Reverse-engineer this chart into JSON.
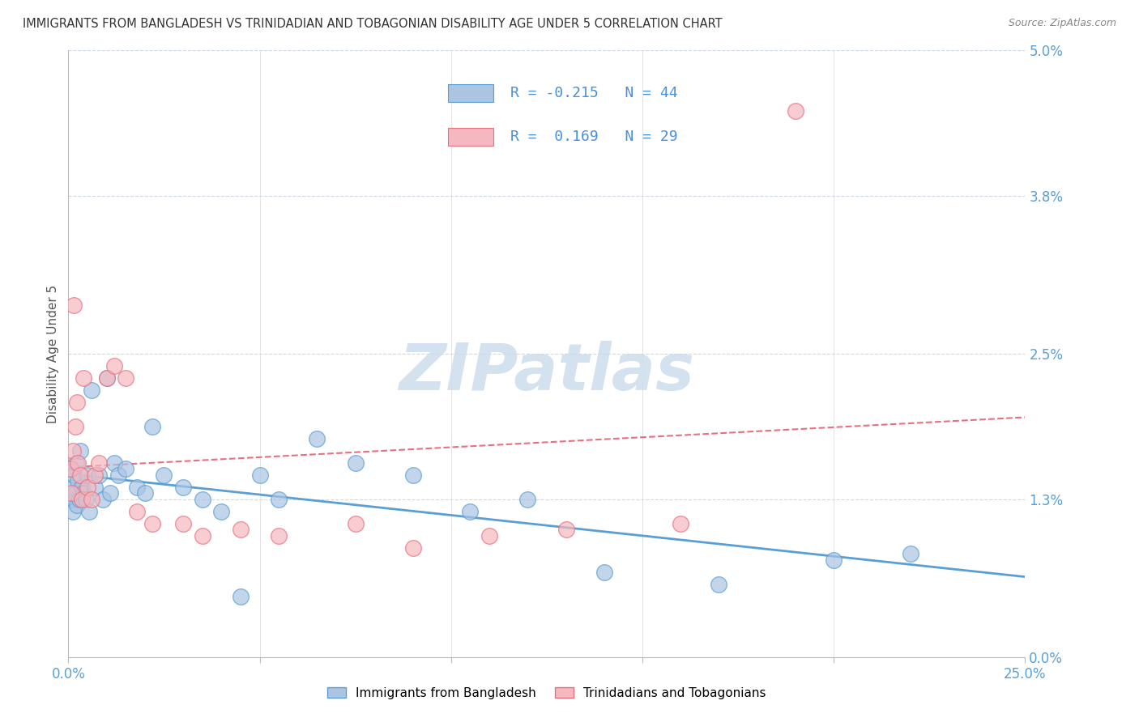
{
  "title": "IMMIGRANTS FROM BANGLADESH VS TRINIDADIAN AND TOBAGONIAN DISABILITY AGE UNDER 5 CORRELATION CHART",
  "source": "Source: ZipAtlas.com",
  "ylabel": "Disability Age Under 5",
  "ytick_values": [
    0.0,
    1.3,
    2.5,
    3.8,
    5.0
  ],
  "xlim": [
    0.0,
    25.0
  ],
  "ylim": [
    0.0,
    5.0
  ],
  "legend_label1": "Immigrants from Bangladesh",
  "legend_label2": "Trinidadians and Tobagonians",
  "R1": "-0.215",
  "N1": "44",
  "R2": "0.169",
  "N2": "29",
  "color_blue": "#aac4e2",
  "color_pink": "#f5b8c0",
  "trendline_blue": "#5a9fd4",
  "trendline_pink": "#e8707e",
  "watermark_color": "#cddcec",
  "bg_color": "#ffffff",
  "grid_color": "#d0d8e4",
  "bangladesh_x": [
    0.05,
    0.08,
    0.1,
    0.12,
    0.15,
    0.18,
    0.2,
    0.22,
    0.25,
    0.28,
    0.3,
    0.35,
    0.4,
    0.45,
    0.5,
    0.55,
    0.6,
    0.7,
    0.8,
    0.9,
    1.0,
    1.1,
    1.2,
    1.3,
    1.5,
    1.8,
    2.0,
    2.2,
    2.5,
    3.0,
    3.5,
    4.0,
    4.5,
    5.0,
    5.5,
    6.5,
    7.5,
    9.0,
    10.5,
    12.0,
    14.0,
    17.0,
    20.0,
    22.0
  ],
  "bangladesh_y": [
    1.55,
    1.3,
    1.4,
    1.2,
    1.5,
    1.35,
    1.6,
    1.25,
    1.45,
    1.3,
    1.7,
    1.4,
    1.35,
    1.3,
    1.5,
    1.2,
    2.2,
    1.4,
    1.5,
    1.3,
    2.3,
    1.35,
    1.6,
    1.5,
    1.55,
    1.4,
    1.35,
    1.9,
    1.5,
    1.4,
    1.3,
    1.2,
    0.5,
    1.5,
    1.3,
    1.8,
    1.6,
    1.5,
    1.2,
    1.3,
    0.7,
    0.6,
    0.8,
    0.85
  ],
  "trinidad_x": [
    0.05,
    0.08,
    0.12,
    0.15,
    0.18,
    0.22,
    0.25,
    0.3,
    0.35,
    0.4,
    0.5,
    0.6,
    0.7,
    0.8,
    1.0,
    1.2,
    1.5,
    1.8,
    2.2,
    3.0,
    3.5,
    4.5,
    5.5,
    7.5,
    9.0,
    11.0,
    13.0,
    16.0,
    19.0
  ],
  "trinidad_y": [
    1.55,
    1.35,
    1.7,
    2.9,
    1.9,
    2.1,
    1.6,
    1.5,
    1.3,
    2.3,
    1.4,
    1.3,
    1.5,
    1.6,
    2.3,
    2.4,
    2.3,
    1.2,
    1.1,
    1.1,
    1.0,
    1.05,
    1.0,
    1.1,
    0.9,
    1.0,
    1.05,
    1.1,
    4.5
  ]
}
